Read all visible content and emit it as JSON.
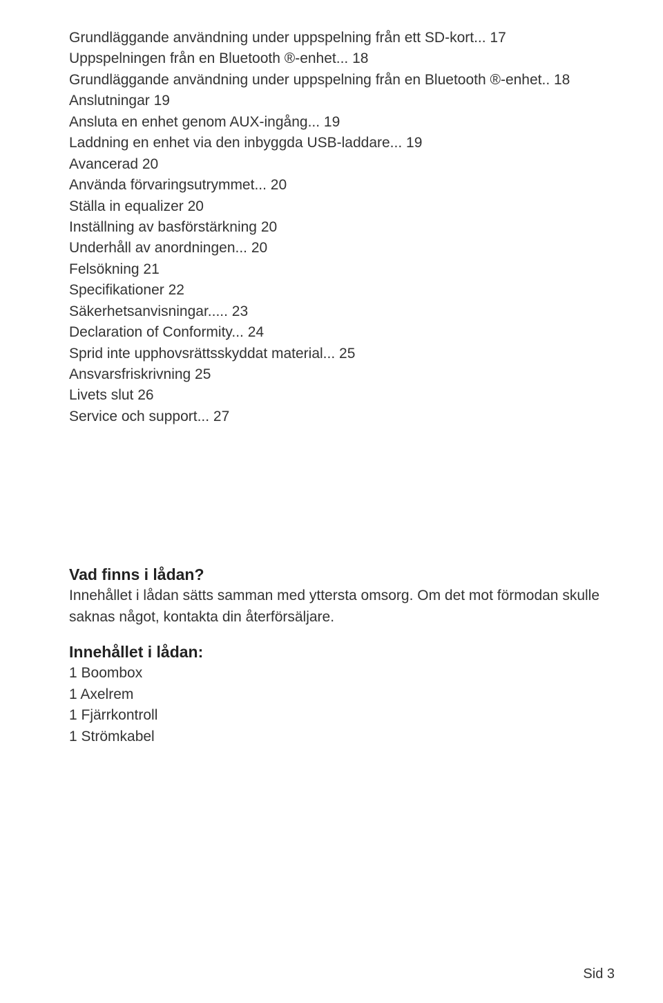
{
  "toc": [
    "Grundläggande användning under uppspelning från ett SD-kort... 17",
    "Uppspelningen från en Bluetooth ®-enhet... 18",
    "Grundläggande användning under uppspelning från en Bluetooth ®-enhet.. 18",
    "Anslutningar 19",
    "Ansluta en enhet genom AUX-ingång... 19",
    "Laddning en enhet via den inbyggda USB-laddare... 19",
    "Avancerad 20",
    "Använda förvaringsutrymmet... 20",
    "Ställa in equalizer 20",
    "Inställning av basförstärkning 20",
    "Underhåll av anordningen... 20",
    "Felsökning 21",
    "Specifikationer 22",
    "Säkerhetsanvisningar..... 23",
    "Declaration of Conformity... 24",
    "Sprid inte upphovsrättsskyddat material... 25",
    "Ansvarsfriskrivning 25",
    "Livets slut 26",
    "Service och support... 27"
  ],
  "section": {
    "heading": "Vad finns i lådan?",
    "body": "Innehållet i lådan sätts samman med yttersta omsorg. Om det mot förmodan skulle saknas något, kontakta din återförsäljare."
  },
  "contents": {
    "heading": "Innehållet i lådan:",
    "items": [
      "1 Boombox",
      "1 Axelrem",
      "1 Fjärrkontroll",
      "1 Strömkabel"
    ]
  },
  "page": "Sid 3"
}
